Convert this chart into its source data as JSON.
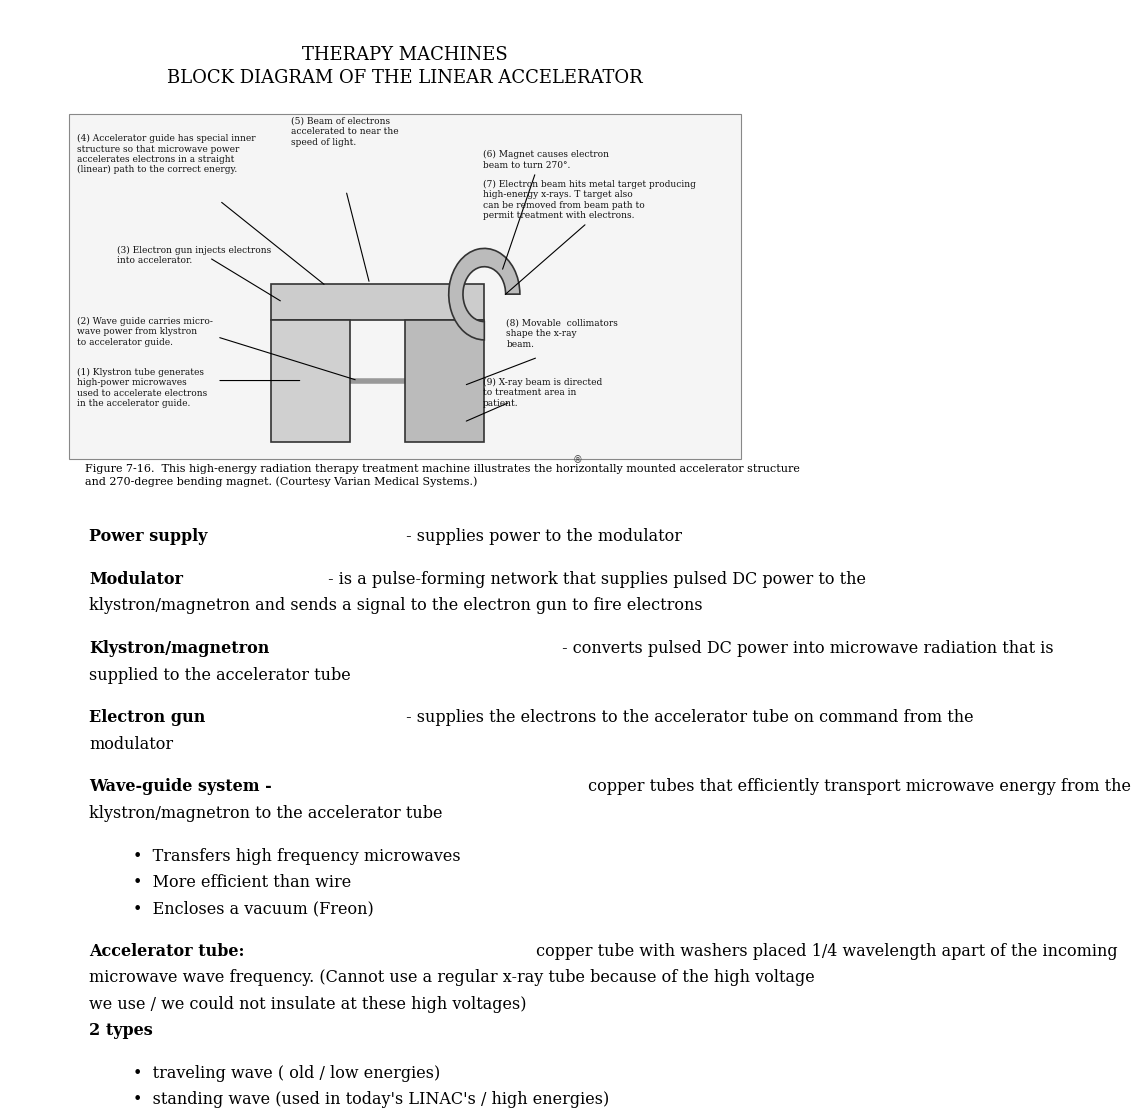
{
  "title1": "THERAPY MACHINES",
  "title2": "BLOCK DIAGRAM OF THE LINEAR ACCELERATOR",
  "bg_color": "#ffffff",
  "text_color": "#000000",
  "figure_caption": "Figure 7-16.  This high-energy radiation therapy treatment machine illustrates the horizontally mounted accelerator structure\nand 270-degree bending magnet. (Courtesy Varian Medical Systems.)",
  "sections": [
    {
      "bold": "Power supply",
      "normal": " - supplies power to the modulator"
    },
    {
      "bold": "Modulator",
      "normal_line1": " - is a pulse-forming network that supplies pulsed DC power to the",
      "normal_line2": "klystron/magnetron and sends a signal to the electron gun to fire electrons"
    },
    {
      "bold": "Klystron/magnetron",
      "normal_line1": " - converts pulsed DC power into microwave radiation that is",
      "normal_line2": "supplied to the accelerator tube"
    },
    {
      "bold": "Electron gun",
      "normal_line1": " - supplies the electrons to the accelerator tube on command from the",
      "normal_line2": "modulator"
    },
    {
      "bold": "Wave-guide system -",
      "normal_line1": " copper tubes that efficiently transport microwave energy from the",
      "normal_line2": "klystron/magnetron to the accelerator tube"
    }
  ],
  "bullets1": [
    "Transfers high frequency microwaves",
    "More efficient than wire",
    "Encloses a vacuum (Freon)"
  ],
  "accelerator_bold": "Accelerator tube:",
  "accelerator_line1": " copper tube with washers placed 1/4 wavelength apart of the incoming",
  "accelerator_line2": "microwave wave frequency. (Cannot use a regular x-ray tube because of the high voltage",
  "accelerator_line3": "we use / we could not insulate at these high voltages)",
  "two_types_bold": "2 types",
  "bullets2": [
    "traveling wave ( old / low energies)",
    "standing wave (used in today's LINAC's / high energies)"
  ],
  "diagram_labels": [
    "(4) Accelerator guide has special inner\nstructure so that microwave power\naccelerates electrons in a straight\n(linear) path to the correct energy.",
    "(5) Beam of electrons\naccelerated to near the\nspeed of light.",
    "(6) Magnet causes electron\nbeam to turn 270°.",
    "(7) Electron beam hits metal target producing\nhigh-energy x-rays. T target also\ncan be removed from beam path to\npermit treatment with electrons.",
    "(3) Electron gun injects electrons\ninto accelerator.",
    "(2) Wave guide carries micro-\nwave power from klystron\nto accelerator guide.",
    "(8) Movable  collimators\nshape the x-ray\nbeam.",
    "(1) Klystron tube generates\nhigh-power microwaves\nused to accelerate electrons\nin the accelerator guide.",
    "(9) X-ray beam is directed\nto treatment area in\npatient."
  ]
}
